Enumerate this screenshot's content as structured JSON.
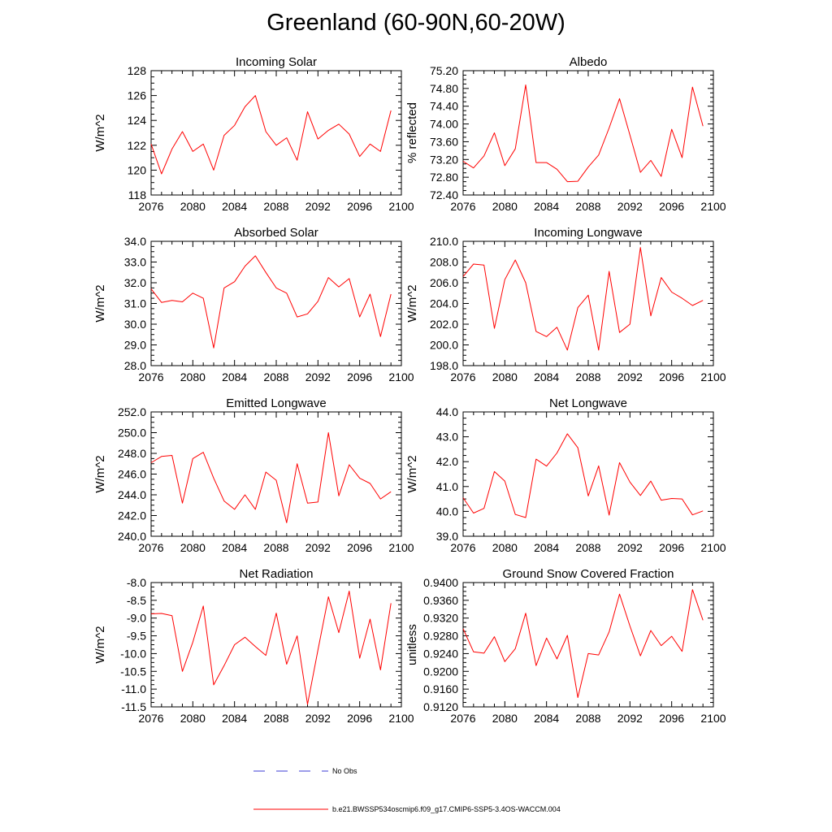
{
  "title": "Greenland (60-90N,60-20W)",
  "colors": {
    "model_line": "#ff0000",
    "obs_line": "#3b3bd6",
    "axes": "#000000"
  },
  "legend": {
    "entries": [
      {
        "label": "No Obs",
        "style": "dashed",
        "color": "#3b3bd6"
      },
      {
        "label": "b.e21.BWSSP534oscmip6.f09_g17.CMIP6-SSP5-3.4OS-WACCM.004",
        "style": "solid",
        "color": "#ff0000"
      }
    ]
  },
  "chart_data": [
    {
      "type": "line",
      "title": "Incoming Solar",
      "ylabel": "W/m^2",
      "xlim": [
        2076,
        2100
      ],
      "ylim": [
        118,
        128
      ],
      "xticks": [
        "2076",
        "2080",
        "2084",
        "2088",
        "2092",
        "2096",
        "2100"
      ],
      "yticks": [
        "118",
        "120",
        "122",
        "124",
        "126",
        "128"
      ],
      "x": [
        2076,
        2077,
        2078,
        2079,
        2080,
        2081,
        2082,
        2083,
        2084,
        2085,
        2086,
        2087,
        2088,
        2089,
        2090,
        2091,
        2092,
        2093,
        2094,
        2095,
        2096,
        2097,
        2098,
        2099
      ],
      "series": [
        {
          "name": "b.e21.BWSSP534oscmip6.f09_g17.CMIP6-SSP5-3.4OS-WACCM.004",
          "values": [
            122.1,
            119.7,
            121.7,
            123.1,
            121.5,
            122.1,
            120.0,
            122.8,
            123.6,
            125.1,
            126.0,
            123.1,
            122.0,
            122.6,
            120.8,
            124.7,
            122.5,
            123.2,
            123.7,
            122.9,
            121.1,
            122.1,
            121.5,
            124.8
          ]
        }
      ]
    },
    {
      "type": "line",
      "title": "Albedo",
      "ylabel": "% reflected",
      "xlim": [
        2076,
        2100
      ],
      "ylim": [
        72.4,
        75.2
      ],
      "xticks": [
        "2076",
        "2080",
        "2084",
        "2088",
        "2092",
        "2096",
        "2100"
      ],
      "yticks": [
        "72.40",
        "72.80",
        "73.20",
        "73.60",
        "74.00",
        "74.40",
        "74.80",
        "75.20"
      ],
      "x": [
        2076,
        2077,
        2078,
        2079,
        2080,
        2081,
        2082,
        2083,
        2084,
        2085,
        2086,
        2087,
        2088,
        2089,
        2090,
        2091,
        2092,
        2093,
        2094,
        2095,
        2096,
        2097,
        2098,
        2099
      ],
      "series": [
        {
          "name": "b.e21.BWSSP534oscmip6.f09_g17.CMIP6-SSP5-3.4OS-WACCM.004",
          "values": [
            73.16,
            73.01,
            73.28,
            73.8,
            73.06,
            73.44,
            74.88,
            73.13,
            73.13,
            72.98,
            72.7,
            72.71,
            73.03,
            73.3,
            73.91,
            74.57,
            73.75,
            72.91,
            73.18,
            72.82,
            73.88,
            73.24,
            74.83,
            73.95
          ]
        }
      ]
    },
    {
      "type": "line",
      "title": "Absorbed Solar",
      "ylabel": "W/m^2",
      "xlim": [
        2076,
        2100
      ],
      "ylim": [
        28,
        34
      ],
      "xticks": [
        "2076",
        "2080",
        "2084",
        "2088",
        "2092",
        "2096",
        "2100"
      ],
      "yticks": [
        "28.0",
        "29.0",
        "30.0",
        "31.0",
        "32.0",
        "33.0",
        "34.0"
      ],
      "x": [
        2076,
        2077,
        2078,
        2079,
        2080,
        2081,
        2082,
        2083,
        2084,
        2085,
        2086,
        2087,
        2088,
        2089,
        2090,
        2091,
        2092,
        2093,
        2094,
        2095,
        2096,
        2097,
        2098,
        2099
      ],
      "series": [
        {
          "name": "b.e21.BWSSP534oscmip6.f09_g17.CMIP6-SSP5-3.4OS-WACCM.004",
          "values": [
            31.7,
            31.05,
            31.15,
            31.08,
            31.5,
            31.25,
            28.85,
            31.75,
            32.05,
            32.8,
            33.3,
            32.5,
            31.75,
            31.5,
            30.35,
            30.5,
            31.1,
            32.25,
            31.8,
            32.2,
            30.35,
            31.45,
            29.4,
            31.45
          ]
        }
      ]
    },
    {
      "type": "line",
      "title": "Incoming Longwave",
      "ylabel": "W/m^2",
      "xlim": [
        2076,
        2100
      ],
      "ylim": [
        198,
        210
      ],
      "xticks": [
        "2076",
        "2080",
        "2084",
        "2088",
        "2092",
        "2096",
        "2100"
      ],
      "yticks": [
        "198.0",
        "200.0",
        "202.0",
        "204.0",
        "206.0",
        "208.0",
        "210.0"
      ],
      "x": [
        2076,
        2077,
        2078,
        2079,
        2080,
        2081,
        2082,
        2083,
        2084,
        2085,
        2086,
        2087,
        2088,
        2089,
        2090,
        2091,
        2092,
        2093,
        2094,
        2095,
        2096,
        2097,
        2098,
        2099
      ],
      "series": [
        {
          "name": "b.e21.BWSSP534oscmip6.f09_g17.CMIP6-SSP5-3.4OS-WACCM.004",
          "values": [
            206.6,
            207.8,
            207.7,
            201.6,
            206.3,
            208.2,
            206.0,
            201.3,
            200.8,
            201.7,
            199.5,
            203.6,
            204.8,
            199.5,
            207.1,
            201.2,
            202.0,
            209.4,
            202.8,
            206.5,
            205.1,
            204.5,
            203.8,
            204.3
          ]
        }
      ]
    },
    {
      "type": "line",
      "title": "Emitted Longwave",
      "ylabel": "W/m^2",
      "xlim": [
        2076,
        2100
      ],
      "ylim": [
        240,
        252
      ],
      "xticks": [
        "2076",
        "2080",
        "2084",
        "2088",
        "2092",
        "2096",
        "2100"
      ],
      "yticks": [
        "240.0",
        "242.0",
        "244.0",
        "246.0",
        "248.0",
        "250.0",
        "252.0"
      ],
      "x": [
        2076,
        2077,
        2078,
        2079,
        2080,
        2081,
        2082,
        2083,
        2084,
        2085,
        2086,
        2087,
        2088,
        2089,
        2090,
        2091,
        2092,
        2093,
        2094,
        2095,
        2096,
        2097,
        2098,
        2099
      ],
      "series": [
        {
          "name": "b.e21.BWSSP534oscmip6.f09_g17.CMIP6-SSP5-3.4OS-WACCM.004",
          "values": [
            247.1,
            247.7,
            247.8,
            243.2,
            247.5,
            248.1,
            245.6,
            243.4,
            242.6,
            244.0,
            242.6,
            246.2,
            245.4,
            241.3,
            247.0,
            243.2,
            243.3,
            250.0,
            243.9,
            246.9,
            245.6,
            245.1,
            243.6,
            244.3
          ]
        }
      ]
    },
    {
      "type": "line",
      "title": "Net Longwave",
      "ylabel": "W/m^2",
      "xlim": [
        2076,
        2100
      ],
      "ylim": [
        39,
        44
      ],
      "xticks": [
        "2076",
        "2080",
        "2084",
        "2088",
        "2092",
        "2096",
        "2100"
      ],
      "yticks": [
        "39.0",
        "40.0",
        "41.0",
        "42.0",
        "43.0",
        "44.0"
      ],
      "x": [
        2076,
        2077,
        2078,
        2079,
        2080,
        2081,
        2082,
        2083,
        2084,
        2085,
        2086,
        2087,
        2088,
        2089,
        2090,
        2091,
        2092,
        2093,
        2094,
        2095,
        2096,
        2097,
        2098,
        2099
      ],
      "series": [
        {
          "name": "b.e21.BWSSP534oscmip6.f09_g17.CMIP6-SSP5-3.4OS-WACCM.004",
          "values": [
            40.55,
            39.93,
            40.12,
            41.6,
            41.22,
            39.88,
            39.75,
            42.1,
            41.82,
            42.35,
            43.12,
            42.56,
            40.62,
            41.83,
            39.85,
            41.96,
            41.18,
            40.64,
            41.22,
            40.45,
            40.52,
            40.5,
            39.86,
            40.02
          ]
        }
      ]
    },
    {
      "type": "line",
      "title": "Net Radiation",
      "ylabel": "W/m^2",
      "xlim": [
        2076,
        2100
      ],
      "ylim": [
        -11.5,
        -8.0
      ],
      "xticks": [
        "2076",
        "2080",
        "2084",
        "2088",
        "2092",
        "2096",
        "2100"
      ],
      "yticks": [
        "-11.5",
        "-11.0",
        "-10.5",
        "-10.0",
        "-9.5",
        "-9.0",
        "-8.5",
        "-8.0"
      ],
      "x": [
        2076,
        2077,
        2078,
        2079,
        2080,
        2081,
        2082,
        2083,
        2084,
        2085,
        2086,
        2087,
        2088,
        2089,
        2090,
        2091,
        2092,
        2093,
        2094,
        2095,
        2096,
        2097,
        2098,
        2099
      ],
      "series": [
        {
          "name": "b.e21.BWSSP534oscmip6.f09_g17.CMIP6-SSP5-3.4OS-WACCM.004",
          "values": [
            -8.88,
            -8.87,
            -8.93,
            -10.5,
            -9.68,
            -8.66,
            -10.88,
            -10.34,
            -9.75,
            -9.54,
            -9.8,
            -10.05,
            -8.86,
            -10.3,
            -9.5,
            -11.43,
            -9.9,
            -8.4,
            -9.41,
            -8.24,
            -10.13,
            -9.03,
            -10.46,
            -8.58
          ]
        }
      ]
    },
    {
      "type": "line",
      "title": "Ground Snow Covered Fraction",
      "ylabel": "unitless",
      "xlim": [
        2076,
        2100
      ],
      "ylim": [
        0.912,
        0.94
      ],
      "xticks": [
        "2076",
        "2080",
        "2084",
        "2088",
        "2092",
        "2096",
        "2100"
      ],
      "yticks": [
        "0.9120",
        "0.9160",
        "0.9200",
        "0.9240",
        "0.9280",
        "0.9320",
        "0.9360",
        "0.9400"
      ],
      "x": [
        2076,
        2077,
        2078,
        2079,
        2080,
        2081,
        2082,
        2083,
        2084,
        2085,
        2086,
        2087,
        2088,
        2089,
        2090,
        2091,
        2092,
        2093,
        2094,
        2095,
        2096,
        2097,
        2098,
        2099
      ],
      "series": [
        {
          "name": "b.e21.BWSSP534oscmip6.f09_g17.CMIP6-SSP5-3.4OS-WACCM.004",
          "values": [
            0.9296,
            0.9244,
            0.9241,
            0.9278,
            0.9222,
            0.9251,
            0.9331,
            0.9213,
            0.9275,
            0.9228,
            0.9281,
            0.9141,
            0.924,
            0.9237,
            0.9289,
            0.9374,
            0.9302,
            0.9235,
            0.9292,
            0.9258,
            0.9279,
            0.9245,
            0.9384,
            0.9315
          ]
        }
      ]
    }
  ]
}
